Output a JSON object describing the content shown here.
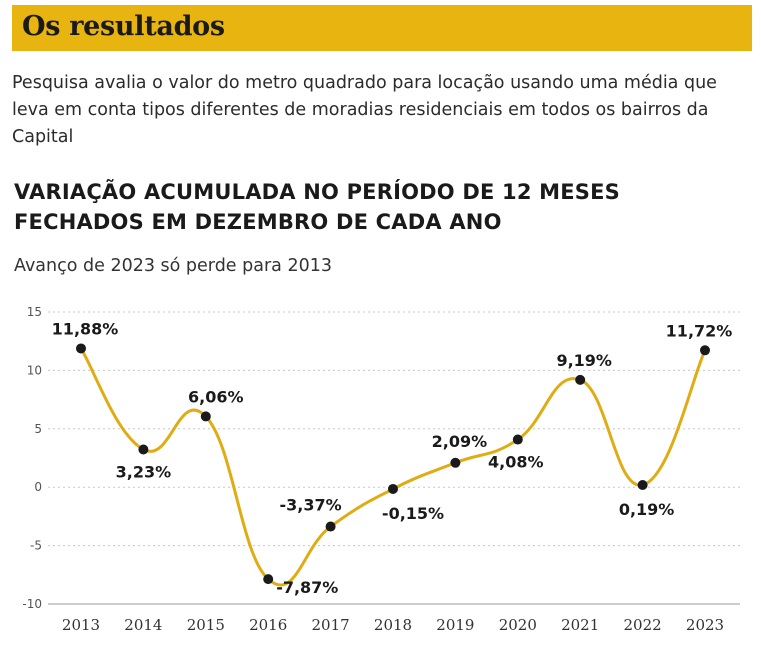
{
  "header": {
    "title": "Os resultados"
  },
  "intro": "Pesquisa avalia o valor do metro quadrado para locação usando uma média que leva em conta tipos diferentes de moradias residenciais em todos os bairros da Capital",
  "colors": {
    "accent": "#e8b40f",
    "line": "#e0ac14",
    "point": "#1a1a1a",
    "grid": "#c8c8c8"
  },
  "chart_data": {
    "type": "line",
    "title_lines": [
      "VARIAÇÃO ACUMULADA NO PERÍODO DE 12 MESES",
      "FECHADOS EM DEZEMBRO DE CADA ANO"
    ],
    "subtitle": "Avanço de 2023 só perde para 2013",
    "xlabel": "",
    "ylabel": "",
    "ylim": [
      -10,
      15
    ],
    "yticks": [
      "15",
      "10",
      "5",
      "0",
      "-5",
      "-10"
    ],
    "grid": true,
    "categories": [
      "2013",
      "2014",
      "2015",
      "2016",
      "2017",
      "2018",
      "2019",
      "2020",
      "2021",
      "2022",
      "2023"
    ],
    "values": [
      11.88,
      3.23,
      6.06,
      -7.87,
      -3.37,
      -0.15,
      2.09,
      4.08,
      9.19,
      0.19,
      11.72
    ],
    "data_labels": [
      "11,88%",
      "3,23%",
      "6,06%",
      "-7,87%",
      "-3,37%",
      "-0,15%",
      "2,09%",
      "4,08%",
      "9,19%",
      "0,19%",
      "11,72%"
    ]
  }
}
